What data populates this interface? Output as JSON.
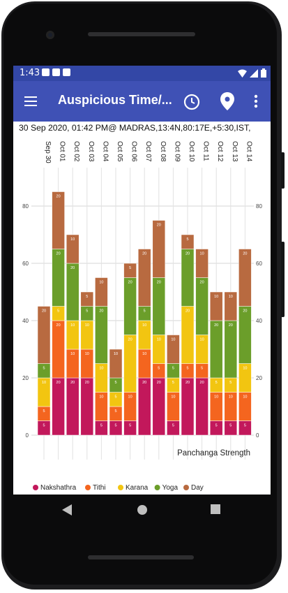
{
  "status_bar": {
    "time": "1:43"
  },
  "app_bar": {
    "title": "Auspicious Time/...",
    "menu_icon": "hamburger-menu-icon",
    "clock_icon": "clock-icon",
    "location_icon": "location-pin-icon",
    "more_icon": "more-vert-icon"
  },
  "subtitle": "30 Sep 2020, 01:42 PM@ MADRAS,13:4N,80:17E,+5:30,IST,",
  "chart_data": {
    "type": "bar",
    "stacked": true,
    "categories": [
      "Sep 30",
      "Oct 01",
      "Oct 02",
      "Oct 03",
      "Oct 04",
      "Oct 05",
      "Oct 06",
      "Oct 07",
      "Oct 08",
      "Oct 09",
      "Oct 10",
      "Oct 11",
      "Oct 12",
      "Oct 13",
      "Oct 14"
    ],
    "ylim": [
      0,
      90
    ],
    "yticks": [
      0,
      20,
      40,
      60,
      80
    ],
    "label": "Panchanga Strength",
    "grid": true,
    "legend_position": "bottom",
    "series": [
      {
        "name": "Nakshathra",
        "color": "#c2185b",
        "values": [
          5,
          20,
          20,
          20,
          5,
          5,
          5,
          20,
          20,
          5,
          20,
          20,
          5,
          5,
          5
        ]
      },
      {
        "name": "Tithi",
        "color": "#f4651f",
        "values": [
          5,
          20,
          10,
          10,
          10,
          5,
          10,
          10,
          5,
          10,
          5,
          5,
          10,
          10,
          10
        ]
      },
      {
        "name": "Karana",
        "color": "#f2c511",
        "values": [
          10,
          5,
          10,
          10,
          10,
          5,
          20,
          10,
          10,
          5,
          20,
          10,
          5,
          5,
          10
        ]
      },
      {
        "name": "Yoga",
        "color": "#6b9e2a",
        "values": [
          5,
          20,
          20,
          5,
          20,
          5,
          20,
          5,
          20,
          5,
          20,
          20,
          20,
          20,
          20
        ]
      },
      {
        "name": "Day",
        "color": "#b86a40",
        "values": [
          20,
          20,
          10,
          5,
          10,
          10,
          5,
          20,
          20,
          10,
          5,
          10,
          10,
          10,
          20
        ]
      }
    ]
  },
  "nav_bar": {
    "back_icon": "back-triangle-icon",
    "home_icon": "home-circle-icon",
    "recents_icon": "recents-square-icon"
  }
}
